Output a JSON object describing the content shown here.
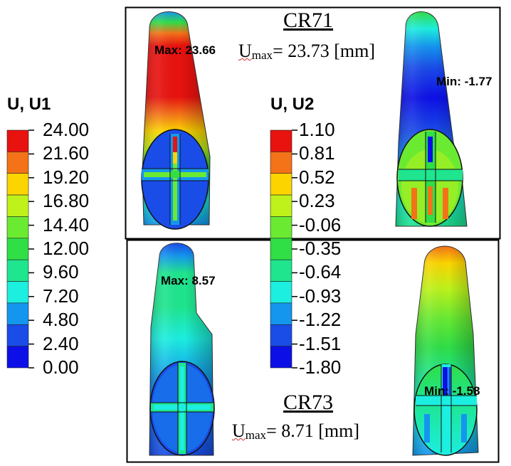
{
  "legend_u1": {
    "title": "U, U1",
    "labels": [
      "24.00",
      "21.60",
      "19.20",
      "16.80",
      "14.40",
      "12.00",
      "9.60",
      "7.20",
      "4.80",
      "2.40",
      "0.00"
    ],
    "colors": [
      "#e8120f",
      "#f47318",
      "#fcd400",
      "#bff21a",
      "#6bea32",
      "#30de46",
      "#1ee58e",
      "#1ceee0",
      "#1496ee",
      "#1a4ce8",
      "#0d10e6"
    ]
  },
  "legend_u2": {
    "title": "U, U2",
    "labels": [
      "1.10",
      "0.81",
      "0.52",
      "0.23",
      "-0.06",
      "-0.35",
      "-0.64",
      "-0.93",
      "-1.22",
      "-1.51",
      "-1.80"
    ],
    "colors": [
      "#e8120f",
      "#f47318",
      "#fcd400",
      "#bff21a",
      "#6bea32",
      "#30de46",
      "#1ee58e",
      "#1ceee0",
      "#1496ee",
      "#1a4ce8",
      "#0d10e6"
    ]
  },
  "cr71": {
    "title": "CR71",
    "umax_symbol": "U",
    "umax_subscript": "max",
    "umax_value": "= 23.73 [mm]",
    "max_annotation": "Max: 23.66",
    "min_annotation": "Min: -1.77"
  },
  "cr73": {
    "title": "CR73",
    "umax_symbol": "U",
    "umax_subscript": "max",
    "umax_value": "= 8.71 [mm]",
    "max_annotation": "Max: 8.57",
    "min_annotation": "Min: -1.58"
  }
}
